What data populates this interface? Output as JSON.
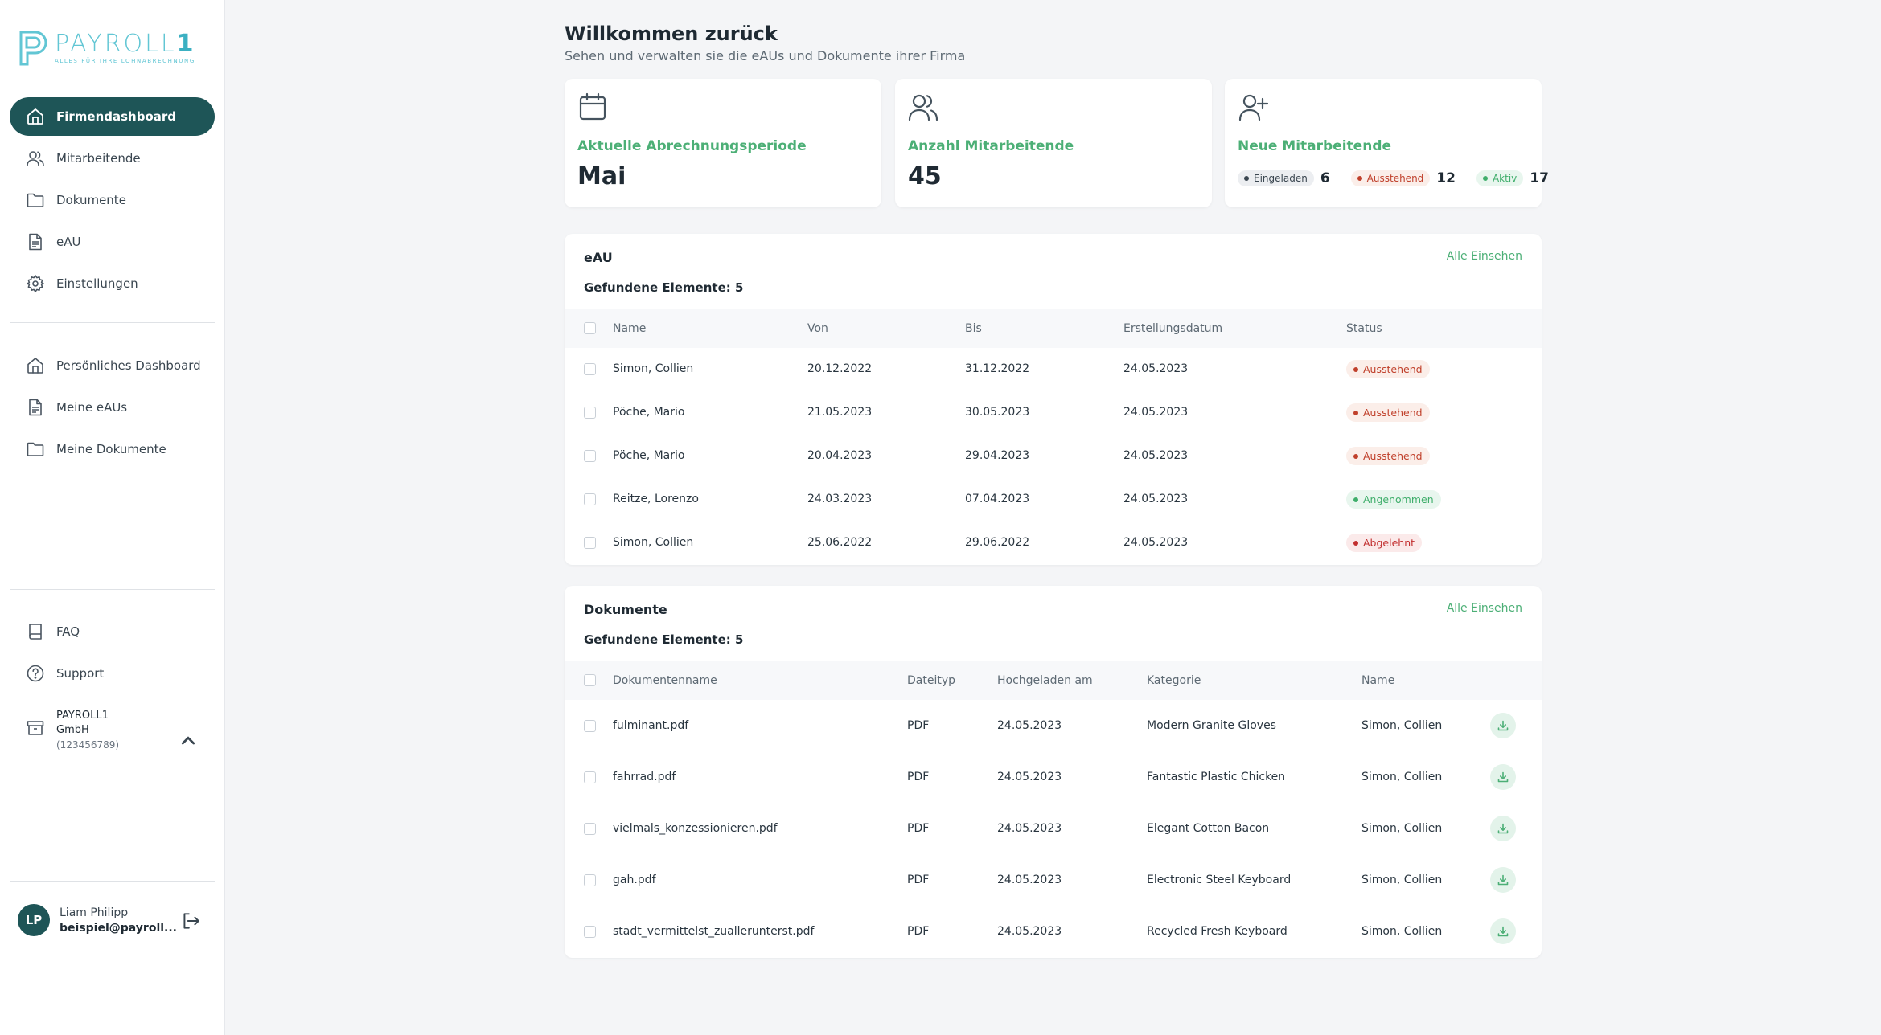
{
  "brand": {
    "name_main": "PAYROLL",
    "name_accent": "1",
    "tagline": "ALLES FÜR IHRE LOHNABRECHNUNG"
  },
  "sidebar": {
    "company_nav": [
      {
        "label": "Firmendashboard",
        "icon": "home-icon",
        "active": true
      },
      {
        "label": "Mitarbeitende",
        "icon": "users-icon"
      },
      {
        "label": "Dokumente",
        "icon": "folder-icon"
      },
      {
        "label": "eAU",
        "icon": "document-icon"
      },
      {
        "label": "Einstellungen",
        "icon": "gear-icon"
      }
    ],
    "personal_nav": [
      {
        "label": "Persönliches Dashboard",
        "icon": "home-icon"
      },
      {
        "label": "Meine eAUs",
        "icon": "document-icon"
      },
      {
        "label": "Meine Dokumente",
        "icon": "folder-icon"
      }
    ],
    "help_nav": [
      {
        "label": "FAQ",
        "icon": "book-icon"
      },
      {
        "label": "Support",
        "icon": "help-circle-icon"
      }
    ],
    "company": {
      "line1": "PAYROLL1",
      "line2": "GmbH",
      "id": "(123456789)"
    },
    "user": {
      "initials": "LP",
      "name": "Liam Philipp",
      "email": "beispiel@payroll..."
    }
  },
  "header": {
    "title": "Willkommen zurück",
    "subtitle": "Sehen und verwalten sie die eAUs und Dokumente ihrer Firma"
  },
  "stats": {
    "period": {
      "label": "Aktuelle Abrechnungsperiode",
      "value": "Mai"
    },
    "employees": {
      "label": "Anzahl Mitarbeitende",
      "value": "45"
    },
    "new_employees": {
      "label": "Neue Mitarbeitende",
      "invited": {
        "label": "Eingeladen",
        "count": "6"
      },
      "pending": {
        "label": "Ausstehend",
        "count": "12"
      },
      "active": {
        "label": "Aktiv",
        "count": "17"
      }
    }
  },
  "eau": {
    "title": "eAU",
    "see_all": "Alle Einsehen",
    "found": "Gefundene Elemente: 5",
    "columns": [
      "Name",
      "Von",
      "Bis",
      "Erstellungsdatum",
      "Status"
    ],
    "rows": [
      {
        "name": "Simon, Collien",
        "from": "20.12.2022",
        "to": "31.12.2022",
        "created": "24.05.2023",
        "status": "Ausstehend",
        "status_type": "pending"
      },
      {
        "name": "Pöche, Mario",
        "from": "21.05.2023",
        "to": "30.05.2023",
        "created": "24.05.2023",
        "status": "Ausstehend",
        "status_type": "pending"
      },
      {
        "name": "Pöche, Mario",
        "from": "20.04.2023",
        "to": "29.04.2023",
        "created": "24.05.2023",
        "status": "Ausstehend",
        "status_type": "pending"
      },
      {
        "name": "Reitze, Lorenzo",
        "from": "24.03.2023",
        "to": "07.04.2023",
        "created": "24.05.2023",
        "status": "Angenommen",
        "status_type": "accepted"
      },
      {
        "name": "Simon, Collien",
        "from": "25.06.2022",
        "to": "29.06.2022",
        "created": "24.05.2023",
        "status": "Abgelehnt",
        "status_type": "rejected"
      }
    ]
  },
  "docs": {
    "title": "Dokumente",
    "see_all": "Alle Einsehen",
    "found": "Gefundene Elemente: 5",
    "columns": [
      "Dokumentenname",
      "Dateityp",
      "Hochgeladen am",
      "Kategorie",
      "Name"
    ],
    "rows": [
      {
        "file": "fulminant.pdf",
        "type": "PDF",
        "uploaded": "24.05.2023",
        "category": "Modern Granite Gloves",
        "name": "Simon, Collien"
      },
      {
        "file": "fahrrad.pdf",
        "type": "PDF",
        "uploaded": "24.05.2023",
        "category": "Fantastic Plastic Chicken",
        "name": "Simon, Collien"
      },
      {
        "file": "vielmals_konzessionieren.pdf",
        "type": "PDF",
        "uploaded": "24.05.2023",
        "category": "Elegant Cotton Bacon",
        "name": "Simon, Collien"
      },
      {
        "file": "gah.pdf",
        "type": "PDF",
        "uploaded": "24.05.2023",
        "category": "Electronic Steel Keyboard",
        "name": "Simon, Collien"
      },
      {
        "file": "stadt_vermittelst_zuallerunterst.pdf",
        "type": "PDF",
        "uploaded": "24.05.2023",
        "category": "Recycled Fresh Keyboard",
        "name": "Simon, Collien"
      }
    ]
  },
  "colors": {
    "primary": "#1e5557",
    "accent_green": "#4caf76",
    "pending": "#c0402b",
    "accepted": "#3fae6b",
    "rejected": "#c22f2f"
  }
}
